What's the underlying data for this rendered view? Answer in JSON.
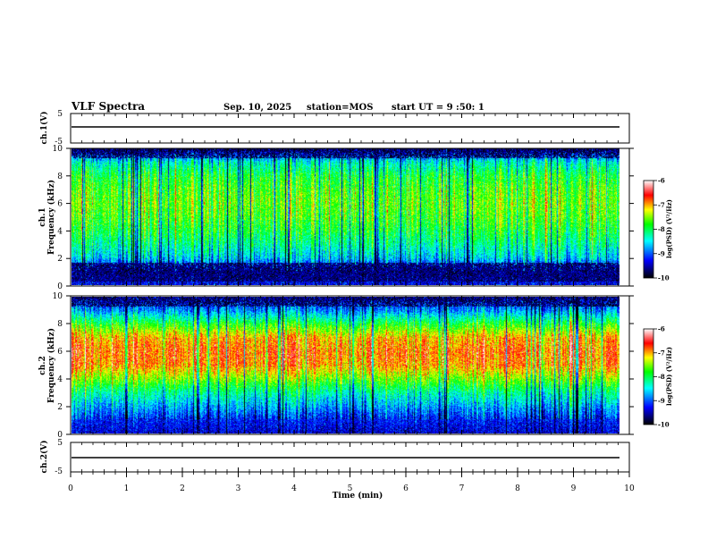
{
  "header": {
    "title": "VLF Spectra",
    "date": "Sep. 10, 2025",
    "station": "station=MOS",
    "start": "start  UT  =   9  :50: 1"
  },
  "chart_data": [
    {
      "type": "line",
      "name": "ch1-waveform",
      "ylabel": "ch.1(V)",
      "ylim": [
        -5,
        5
      ],
      "y_ticks": [
        "5",
        "-5"
      ],
      "xlim": [
        0,
        10
      ],
      "x": [
        0,
        2,
        4,
        6,
        8,
        9.8
      ],
      "y": [
        0,
        0,
        0,
        0,
        0,
        0
      ]
    },
    {
      "type": "heatmap",
      "name": "ch1-spectrogram",
      "ylabel": "ch.1\nFrequency (kHz)",
      "ylim": [
        0,
        10
      ],
      "y_ticks": [
        "0",
        "2",
        "4",
        "6",
        "8",
        "10"
      ],
      "xlim": [
        0,
        9.8
      ],
      "freq_profile_khz": [
        0,
        1,
        2,
        3,
        4,
        5,
        6,
        7,
        8,
        9,
        10
      ],
      "log_psd_profile": [
        -9.3,
        -9.5,
        -8.6,
        -8.2,
        -7.9,
        -7.7,
        -7.6,
        -7.7,
        -7.9,
        -8.4,
        -9.6
      ],
      "colorbar": {
        "label": "log(PSD) (V²/Hz)",
        "range": [
          -10,
          -6
        ],
        "ticks": [
          "-6",
          "-7",
          "-8",
          "-9",
          "-10"
        ]
      }
    },
    {
      "type": "heatmap",
      "name": "ch2-spectrogram",
      "ylabel": "ch.2\nFrequency (kHz)",
      "ylim": [
        0,
        10
      ],
      "y_ticks": [
        "0",
        "2",
        "4",
        "6",
        "8",
        "10"
      ],
      "xlim": [
        0,
        9.8
      ],
      "freq_profile_khz": [
        0,
        1,
        2,
        3,
        4,
        5,
        6,
        7,
        8,
        9,
        10
      ],
      "log_psd_profile": [
        -9.4,
        -9.2,
        -8.7,
        -8.2,
        -7.5,
        -6.9,
        -6.8,
        -7.0,
        -7.8,
        -8.8,
        -9.4
      ],
      "colorbar": {
        "label": "log(PSD) (V²/Hz)",
        "range": [
          -10,
          -6
        ],
        "ticks": [
          "-6",
          "-7",
          "-8",
          "-9",
          "-10"
        ]
      }
    },
    {
      "type": "line",
      "name": "ch2-waveform",
      "ylabel": "ch.2(V)",
      "ylim": [
        -5,
        5
      ],
      "y_ticks": [
        "5",
        "-5"
      ],
      "xlim": [
        0,
        10
      ],
      "x": [
        0,
        2,
        4,
        6,
        8,
        9.8
      ],
      "y": [
        0,
        0,
        0,
        0,
        0,
        0
      ]
    }
  ],
  "x_axis": {
    "label": "Time  (min)",
    "ticks": [
      "0",
      "1",
      "2",
      "3",
      "4",
      "5",
      "6",
      "7",
      "8",
      "9",
      "10"
    ]
  },
  "colors": {
    "colormap": [
      "#000000",
      "#0000ff",
      "#00ffff",
      "#00ff00",
      "#ffff00",
      "#ff0000",
      "#ffffff"
    ]
  }
}
